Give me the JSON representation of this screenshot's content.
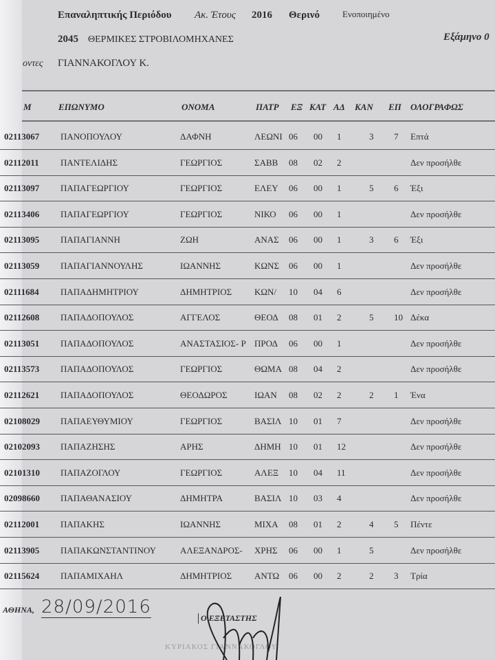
{
  "header": {
    "period": "Επαναληπτικής Περιόδου",
    "year_label": "Ακ. Έτους",
    "year": "2016",
    "season": "Θερινό",
    "status": "Ενοποιημένο",
    "course_code": "2045",
    "course_name": "ΘΕΡΜΙΚΕΣ ΣΤΡΟΒΙΛΟΜΗΧΑΝΕΣ",
    "semester": "Εξάμηνο 0",
    "teacher_label": "οντες",
    "teacher": "ΓΙΑΝΝΑΚΟΓΛΟΥ Κ."
  },
  "columns": [
    "Μ",
    "ΕΠΩΝΥΜΟ",
    "ΟΝΟΜΑ",
    "ΠΑΤΡ",
    "ΕΞ",
    "ΚΑΤ",
    "ΑΔ",
    "ΚΑΝ",
    "ΕΠ",
    "ΟΛΟΓΡΑΦΩΣ"
  ],
  "rows": [
    [
      "02113067",
      "ΠΑΝΟΠΟΥΛΟΥ",
      "ΔΑΦΝΗ",
      "ΛΕΩΝΙ",
      "06",
      "00",
      "1",
      "3",
      "7",
      "Επτά"
    ],
    [
      "02112011",
      "ΠΑΝΤΕΛΙΔΗΣ",
      "ΓΕΩΡΓΙΟΣ",
      "ΣΑΒΒ",
      "08",
      "02",
      "2",
      "",
      "",
      "Δεν προσήλθε"
    ],
    [
      "02113097",
      "ΠΑΠΑΓΕΩΡΓΙΟΥ",
      "ΓΕΩΡΓΙΟΣ",
      "ΕΛΕΥ",
      "06",
      "00",
      "1",
      "5",
      "6",
      "Έξι"
    ],
    [
      "02113406",
      "ΠΑΠΑΓΕΩΡΓΙΟΥ",
      "ΓΕΩΡΓΙΟΣ",
      "ΝΙΚΟ",
      "06",
      "00",
      "1",
      "",
      "",
      "Δεν προσήλθε"
    ],
    [
      "02113095",
      "ΠΑΠΑΓΙΑΝΝΗ",
      "ΖΩΗ",
      "ΑΝΑΣ",
      "06",
      "00",
      "1",
      "3",
      "6",
      "Έξι"
    ],
    [
      "02113059",
      "ΠΑΠΑΓΙΑΝΝΟΥΛΗΣ",
      "ΙΩΑΝΝΗΣ",
      "ΚΩΝΣ",
      "06",
      "00",
      "1",
      "",
      "",
      "Δεν προσήλθε"
    ],
    [
      "02111684",
      "ΠΑΠΑΔΗΜΗΤΡΙΟΥ",
      "ΔΗΜΗΤΡΙΟΣ",
      "ΚΩΝ/",
      "10",
      "04",
      "6",
      "",
      "",
      "Δεν προσήλθε"
    ],
    [
      "02112608",
      "ΠΑΠΑΔΟΠΟΥΛΟΣ",
      "ΑΓΓΕΛΟΣ",
      "ΘΕΟΔ",
      "08",
      "01",
      "2",
      "5",
      "10",
      "Δέκα"
    ],
    [
      "02113051",
      "ΠΑΠΑΔΟΠΟΥΛΟΣ",
      "ΑΝΑΣΤΑΣΙΟΣ- Ρ",
      "ΠΡΟΔ",
      "06",
      "00",
      "1",
      "",
      "",
      "Δεν προσήλθε"
    ],
    [
      "02113573",
      "ΠΑΠΑΔΟΠΟΥΛΟΣ",
      "ΓΕΩΡΓΙΟΣ",
      "ΘΩΜΑ",
      "08",
      "04",
      "2",
      "",
      "",
      "Δεν προσήλθε"
    ],
    [
      "02112621",
      "ΠΑΠΑΔΟΠΟΥΛΟΣ",
      "ΘΕΟΔΩΡΟΣ",
      "ΙΩΑΝ",
      "08",
      "02",
      "2",
      "2",
      "1",
      "Ένα"
    ],
    [
      "02108029",
      "ΠΑΠΑΕΥΘΥΜΙΟΥ",
      "ΓΕΩΡΓΙΟΣ",
      "ΒΑΣΙΛ",
      "10",
      "01",
      "7",
      "",
      "",
      "Δεν προσήλθε"
    ],
    [
      "02102093",
      "ΠΑΠΑΖΗΣΗΣ",
      "ΑΡΗΣ",
      "ΔΗΜΗ",
      "10",
      "01",
      "12",
      "",
      "",
      "Δεν προσήλθε"
    ],
    [
      "02101310",
      "ΠΑΠΑΖΟΓΛΟΥ",
      "ΓΕΩΡΓΙΟΣ",
      "ΑΛΕΞ",
      "10",
      "04",
      "11",
      "",
      "",
      "Δεν προσήλθε"
    ],
    [
      "02098660",
      "ΠΑΠΑΘΑΝΑΣΙΟΥ",
      "ΔΗΜΗΤΡΑ",
      "ΒΑΣΙΛ",
      "10",
      "03",
      "4",
      "",
      "",
      "Δεν προσήλθε"
    ],
    [
      "02112001",
      "ΠΑΠΑΚΗΣ",
      "ΙΩΑΝΝΗΣ",
      "ΜΙΧΑ",
      "08",
      "01",
      "2",
      "4",
      "5",
      "Πέντε"
    ],
    [
      "02113905",
      "ΠΑΠΑΚΩΝΣΤΑΝΤΙΝΟΥ",
      "ΑΛΕΞΑΝΔΡΟΣ-",
      "ΧΡΗΣ",
      "06",
      "00",
      "1",
      "5",
      "",
      "Δεν προσήλθε"
    ],
    [
      "02115624",
      "ΠΑΠΑΜΙΧΑΗΛ",
      "ΔΗΜΗΤΡΙΟΣ",
      "ΑΝΤΩ",
      "06",
      "00",
      "2",
      "2",
      "3",
      "Τρία"
    ]
  ],
  "footer": {
    "place": "ΑΘΗΝΑ,",
    "date": "28/09/2016",
    "examiner": "Ο ΕΞΕΤΑΣΤΗΣ",
    "stamp": "ΚΥΡΙΑΚΟΣ ΓΙΑΝΝΑΚΟΓΛΟΥ"
  }
}
